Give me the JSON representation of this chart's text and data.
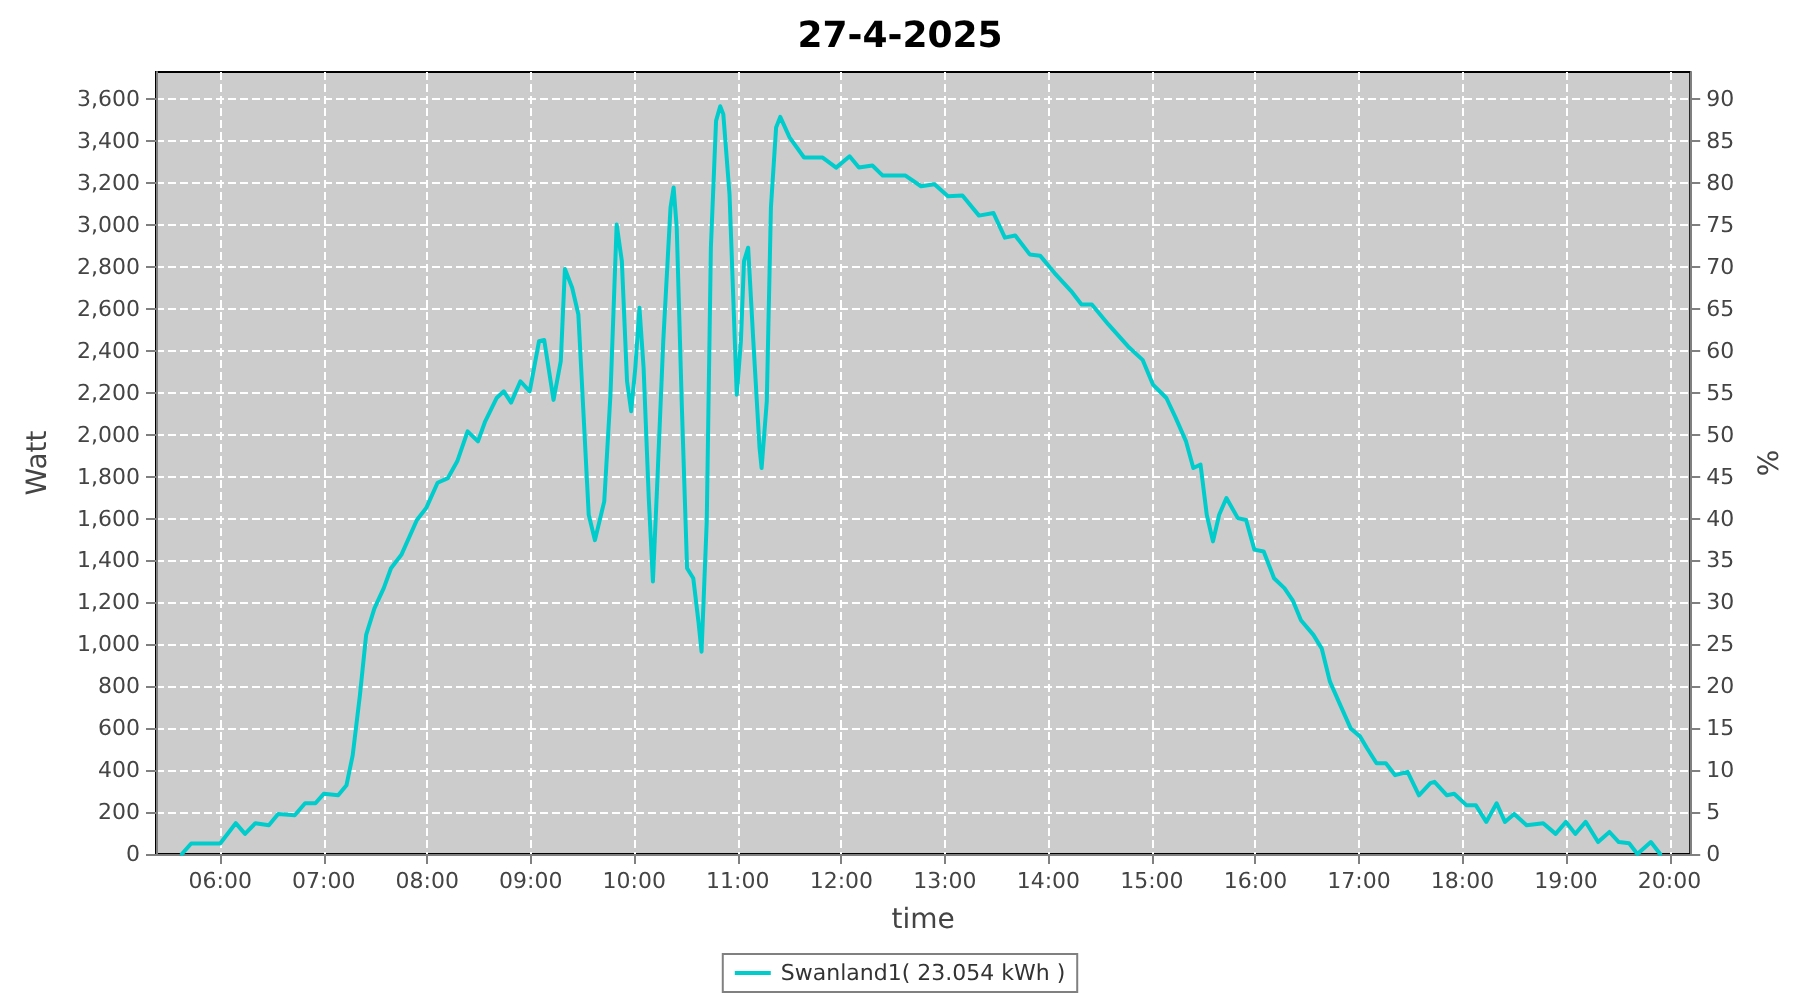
{
  "chart_data": {
    "type": "line",
    "title": "27-4-2025",
    "xlabel": "time",
    "ylabel": "Watt",
    "y2label": "%",
    "xlim": [
      5.38,
      20.2
    ],
    "xticks": [
      {
        "value": 6,
        "label": "06:00"
      },
      {
        "value": 7,
        "label": "07:00"
      },
      {
        "value": 8,
        "label": "08:00"
      },
      {
        "value": 9,
        "label": "09:00"
      },
      {
        "value": 10,
        "label": "10:00"
      },
      {
        "value": 11,
        "label": "11:00"
      },
      {
        "value": 12,
        "label": "12:00"
      },
      {
        "value": 13,
        "label": "13:00"
      },
      {
        "value": 14,
        "label": "14:00"
      },
      {
        "value": 15,
        "label": "15:00"
      },
      {
        "value": 16,
        "label": "16:00"
      },
      {
        "value": 17,
        "label": "17:00"
      },
      {
        "value": 18,
        "label": "18:00"
      },
      {
        "value": 19,
        "label": "19:00"
      },
      {
        "value": 20,
        "label": "20:00"
      }
    ],
    "ylim": [
      0,
      3730
    ],
    "yticks": [
      0,
      200,
      400,
      600,
      800,
      {
        "value": 1000,
        "label": "1,000"
      },
      {
        "value": 1200,
        "label": "1,200"
      },
      {
        "value": 1400,
        "label": "1,400"
      },
      {
        "value": 1600,
        "label": "1,600"
      },
      {
        "value": 1800,
        "label": "1,800"
      },
      {
        "value": 2000,
        "label": "2,000"
      },
      {
        "value": 2200,
        "label": "2,200"
      },
      {
        "value": 2400,
        "label": "2,400"
      },
      {
        "value": 2600,
        "label": "2,600"
      },
      {
        "value": 2800,
        "label": "2,800"
      },
      {
        "value": 3000,
        "label": "3,000"
      },
      {
        "value": 3200,
        "label": "3,200"
      },
      {
        "value": 3400,
        "label": "3,400"
      },
      {
        "value": 3600,
        "label": "3,600"
      }
    ],
    "y2lim": [
      0,
      93.25
    ],
    "y2ticks": [
      0,
      5,
      10,
      15,
      20,
      25,
      30,
      35,
      40,
      45,
      50,
      55,
      60,
      65,
      70,
      75,
      80,
      85,
      90
    ],
    "grid": true,
    "legend": "bottom",
    "marker": "none",
    "line_style": "solid",
    "series": [
      {
        "name": "Swanland1( 23.054 kWh )",
        "color": "#00cccc",
        "x": [
          5.63,
          5.72,
          6.0,
          6.15,
          6.24,
          6.34,
          6.47,
          6.56,
          6.72,
          6.82,
          6.92,
          7.0,
          7.14,
          7.22,
          7.28,
          7.35,
          7.41,
          7.49,
          7.58,
          7.65,
          7.75,
          7.9,
          7.99,
          8.1,
          8.2,
          8.29,
          8.39,
          8.49,
          8.56,
          8.67,
          8.74,
          8.81,
          8.9,
          8.99,
          9.08,
          9.13,
          9.22,
          9.29,
          9.33,
          9.4,
          9.46,
          9.56,
          9.62,
          9.71,
          9.77,
          9.83,
          9.88,
          9.93,
          9.97,
          10.01,
          10.05,
          10.09,
          10.14,
          10.18,
          10.22,
          10.28,
          10.35,
          10.38,
          10.41,
          10.46,
          10.51,
          10.57,
          10.62,
          10.65,
          10.7,
          10.74,
          10.79,
          10.83,
          10.86,
          10.92,
          10.99,
          11.03,
          11.06,
          11.1,
          11.15,
          11.21,
          11.23,
          11.28,
          11.32,
          11.37,
          11.41,
          11.5,
          11.64,
          11.82,
          11.95,
          12.08,
          12.17,
          12.3,
          12.4,
          12.62,
          12.77,
          12.9,
          13.03,
          13.17,
          13.33,
          13.47,
          13.58,
          13.68,
          13.82,
          13.92,
          14.06,
          14.22,
          14.32,
          14.42,
          14.58,
          14.77,
          14.91,
          15.01,
          15.14,
          15.23,
          15.33,
          15.4,
          15.47,
          15.53,
          15.59,
          15.65,
          15.72,
          15.83,
          15.91,
          15.99,
          16.08,
          16.18,
          16.28,
          16.36,
          16.44,
          16.56,
          16.64,
          16.72,
          16.82,
          16.92,
          17.01,
          17.08,
          17.17,
          17.26,
          17.35,
          17.47,
          17.58,
          17.69,
          17.73,
          17.85,
          17.92,
          18.04,
          18.13,
          18.23,
          18.33,
          18.41,
          18.5,
          18.62,
          18.78,
          18.9,
          19.0,
          19.09,
          19.19,
          19.31,
          19.42,
          19.51,
          19.61,
          19.69,
          19.82,
          19.91
        ],
        "values": [
          0,
          50,
          50,
          147,
          96,
          147,
          137,
          191,
          185,
          242,
          242,
          287,
          280,
          328,
          471,
          758,
          1045,
          1172,
          1268,
          1363,
          1427,
          1593,
          1650,
          1771,
          1793,
          1873,
          2016,
          1968,
          2064,
          2175,
          2207,
          2153,
          2255,
          2207,
          2446,
          2452,
          2166,
          2351,
          2790,
          2701,
          2573,
          1618,
          1497,
          1682,
          2191,
          3003,
          2828,
          2255,
          2112,
          2319,
          2605,
          2319,
          1698,
          1300,
          1745,
          2446,
          3083,
          3179,
          2988,
          2128,
          1363,
          1315,
          1108,
          965,
          1586,
          2892,
          3497,
          3567,
          3529,
          3147,
          2191,
          2446,
          2828,
          2892,
          2446,
          1937,
          1841,
          2159,
          3083,
          3465,
          3516,
          3418,
          3322,
          3322,
          3274,
          3328,
          3274,
          3284,
          3236,
          3236,
          3185,
          3195,
          3137,
          3141,
          3045,
          3057,
          2940,
          2950,
          2860,
          2854,
          2771,
          2685,
          2621,
          2621,
          2526,
          2421,
          2357,
          2239,
          2175,
          2080,
          1968,
          1841,
          1857,
          1618,
          1491,
          1618,
          1698,
          1602,
          1593,
          1452,
          1443,
          1315,
          1268,
          1210,
          1115,
          1045,
          981,
          822,
          710,
          599,
          561,
          503,
          433,
          433,
          376,
          392,
          280,
          338,
          344,
          280,
          287,
          232,
          232,
          153,
          242,
          153,
          191,
          137,
          147,
          96,
          153,
          96,
          153,
          57,
          105,
          57,
          51,
          0,
          57,
          0
        ]
      }
    ]
  }
}
